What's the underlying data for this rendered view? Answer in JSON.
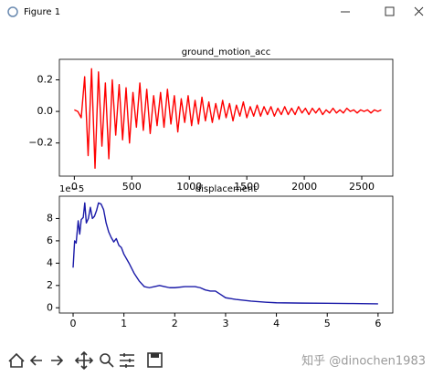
{
  "window": {
    "title": "Figure 1"
  },
  "chart_data": [
    {
      "type": "line",
      "title": "ground_motion_acc",
      "x": [
        0,
        30,
        60,
        90,
        120,
        150,
        180,
        210,
        240,
        270,
        300,
        330,
        360,
        390,
        420,
        450,
        480,
        510,
        540,
        570,
        600,
        630,
        660,
        690,
        720,
        750,
        780,
        810,
        840,
        870,
        900,
        930,
        960,
        990,
        1020,
        1050,
        1080,
        1110,
        1140,
        1170,
        1200,
        1230,
        1260,
        1290,
        1320,
        1350,
        1380,
        1410,
        1440,
        1470,
        1500,
        1530,
        1560,
        1590,
        1620,
        1650,
        1680,
        1710,
        1740,
        1770,
        1800,
        1830,
        1860,
        1890,
        1920,
        1950,
        1980,
        2010,
        2040,
        2070,
        2100,
        2130,
        2160,
        2190,
        2220,
        2250,
        2280,
        2310,
        2340,
        2370,
        2400,
        2430,
        2460,
        2490,
        2520,
        2550,
        2580,
        2610,
        2640,
        2670
      ],
      "values": [
        0.01,
        0.0,
        -0.04,
        0.22,
        -0.28,
        0.27,
        -0.36,
        0.25,
        -0.22,
        0.18,
        -0.3,
        0.2,
        -0.15,
        0.17,
        -0.18,
        0.15,
        -0.2,
        0.12,
        -0.1,
        0.18,
        -0.12,
        0.14,
        -0.14,
        0.1,
        -0.09,
        0.12,
        -0.1,
        0.14,
        -0.08,
        0.1,
        -0.13,
        0.08,
        -0.07,
        0.1,
        -0.09,
        0.07,
        -0.08,
        0.09,
        -0.06,
        0.06,
        -0.07,
        0.05,
        -0.05,
        0.07,
        -0.04,
        0.05,
        -0.06,
        0.04,
        -0.03,
        0.06,
        -0.04,
        0.03,
        -0.03,
        0.04,
        -0.03,
        0.03,
        -0.02,
        0.03,
        -0.03,
        0.02,
        -0.02,
        0.03,
        -0.02,
        0.02,
        -0.02,
        0.03,
        -0.01,
        0.02,
        -0.02,
        0.02,
        -0.01,
        0.02,
        -0.02,
        0.01,
        -0.01,
        0.02,
        -0.01,
        0.01,
        -0.01,
        0.02,
        0.0,
        0.01,
        -0.01,
        0.01,
        0.0,
        0.01,
        -0.01,
        0.01,
        0.0,
        0.01
      ],
      "color": "#ff0000",
      "xlim": [
        -130,
        2770
      ],
      "xticks": [
        0,
        500,
        1000,
        1500,
        2000,
        2500
      ],
      "ylim": [
        -0.41,
        0.33
      ],
      "yticks": [
        {
          "value": -0.2,
          "label": "−0.2"
        },
        {
          "value": 0,
          "label": "0.0"
        },
        0.2
      ]
    },
    {
      "type": "line",
      "title": "displacement",
      "y_offset_label": "1e−5",
      "x": [
        0,
        0.03,
        0.06,
        0.1,
        0.13,
        0.16,
        0.2,
        0.23,
        0.26,
        0.3,
        0.34,
        0.38,
        0.42,
        0.46,
        0.5,
        0.55,
        0.6,
        0.65,
        0.7,
        0.75,
        0.8,
        0.85,
        0.9,
        0.95,
        1.0,
        1.1,
        1.2,
        1.3,
        1.4,
        1.5,
        1.6,
        1.7,
        1.8,
        1.9,
        2.0,
        2.2,
        2.4,
        2.5,
        2.6,
        2.7,
        2.8,
        2.9,
        3.0,
        3.2,
        3.5,
        3.8,
        4.0,
        4.5,
        5.0,
        5.5,
        6.0
      ],
      "values": [
        3.6,
        6.0,
        5.8,
        7.8,
        6.6,
        7.9,
        8.1,
        9.4,
        7.6,
        8.0,
        9.0,
        8.0,
        8.2,
        8.7,
        9.4,
        9.3,
        8.8,
        7.6,
        6.8,
        6.3,
        5.9,
        6.2,
        5.6,
        5.4,
        4.8,
        4.0,
        3.1,
        2.4,
        1.9,
        1.8,
        1.9,
        2.0,
        1.9,
        1.8,
        1.8,
        1.9,
        1.9,
        1.8,
        1.6,
        1.5,
        1.5,
        1.2,
        0.9,
        0.75,
        0.6,
        0.5,
        0.45,
        0.42,
        0.4,
        0.38,
        0.35
      ],
      "color": "#1a1aa8",
      "xlim": [
        -0.27,
        6.29
      ],
      "xticks": [
        0,
        1,
        2,
        3,
        4,
        5,
        6
      ],
      "ylim": [
        -0.47,
        10.0
      ],
      "yticks": [
        0,
        2,
        4,
        6,
        8
      ]
    }
  ],
  "watermark": "知乎 @dinochen1983"
}
